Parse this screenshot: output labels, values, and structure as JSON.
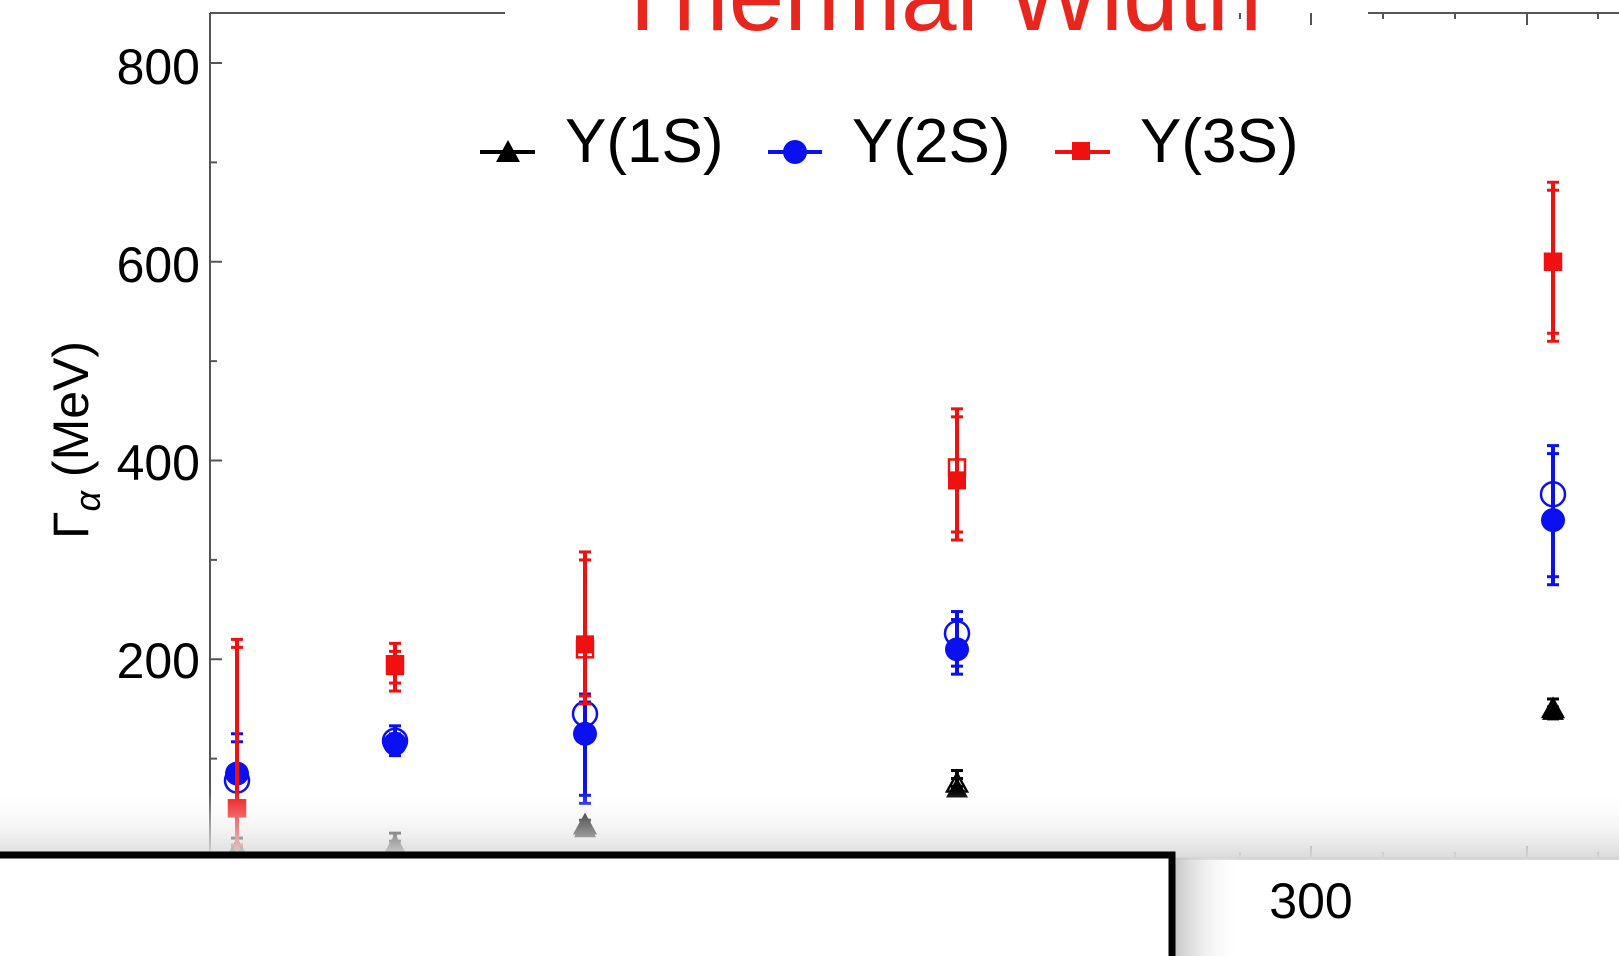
{
  "chart_data": {
    "type": "scatter",
    "title": "Thermal Width",
    "title_color": "#e8261e",
    "ylabel": "Γ",
    "ylabel_subscript": "α",
    "ylabel_unit": "(MeV)",
    "xlim": [
      150,
      330
    ],
    "ylim": [
      0,
      800
    ],
    "y_ticks": [
      200,
      400,
      600,
      800
    ],
    "x_ticks_visible": [
      300
    ],
    "x": [
      151,
      173,
      199,
      250,
      330
    ],
    "series": [
      {
        "name": "Υ(1S)",
        "color": "#000000",
        "marker": "triangle",
        "filled": [
          0,
          10,
          30,
          70,
          148
        ],
        "filled_err_lo": [
          0,
          5,
          4,
          6,
          8
        ],
        "filled_err_hi": [
          20,
          15,
          8,
          18,
          12
        ],
        "open": [
          8,
          12,
          33,
          75,
          150
        ]
      },
      {
        "name": "Υ(2S)",
        "color": "#0a10f0",
        "marker": "circle",
        "filled": [
          85,
          115,
          125,
          210,
          340
        ],
        "filled_err_lo": [
          40,
          12,
          70,
          25,
          65
        ],
        "filled_err_hi": [
          40,
          18,
          40,
          38,
          75
        ],
        "open": [
          78,
          118,
          145,
          226,
          366
        ]
      },
      {
        "name": "Υ(3S)",
        "color": "#f01010",
        "marker": "square",
        "filled": [
          50,
          193,
          215,
          380,
          600
        ],
        "filled_err_lo": [
          45,
          25,
          60,
          60,
          80
        ],
        "filled_err_hi": [
          170,
          23,
          93,
          72,
          80
        ],
        "open": [
          50,
          195,
          210,
          393,
          600
        ]
      }
    ],
    "legend_position": "top"
  },
  "axis_labels": {
    "y_200": "200",
    "y_400": "400",
    "y_600": "600",
    "y_800": "800",
    "x_300": "300"
  },
  "overlay": {
    "description_color": "#000000"
  }
}
